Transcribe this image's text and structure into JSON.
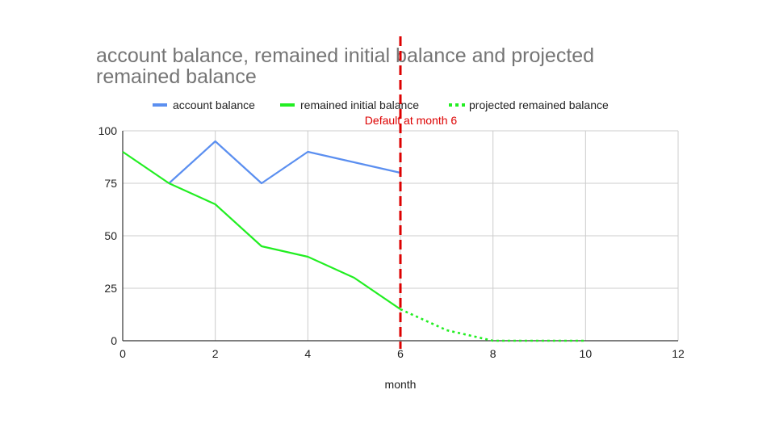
{
  "chart_data": {
    "type": "line",
    "title_lines": [
      "account balance, remained initial balance and projected",
      "remained balance"
    ],
    "xlabel": "month",
    "ylabel": "",
    "xlim": [
      0,
      12
    ],
    "ylim": [
      0,
      100
    ],
    "x_ticks": [
      0,
      2,
      4,
      6,
      8,
      10,
      12
    ],
    "y_ticks": [
      0,
      25,
      50,
      75,
      100
    ],
    "grid": true,
    "legend_position": "top",
    "series": [
      {
        "name": "account balance",
        "color": "#5b8ff0",
        "style": "solid",
        "points": [
          [
            1,
            75
          ],
          [
            2,
            95
          ],
          [
            3,
            75
          ],
          [
            4,
            90
          ],
          [
            6,
            80
          ]
        ]
      },
      {
        "name": "remained initial balance",
        "color": "#22ee22",
        "style": "solid",
        "points": [
          [
            0,
            90
          ],
          [
            1,
            75
          ],
          [
            2,
            65
          ],
          [
            3,
            45
          ],
          [
            4,
            40
          ],
          [
            5,
            30
          ],
          [
            6,
            15
          ]
        ]
      },
      {
        "name": "projected remained balance",
        "color": "#22ee22",
        "style": "dotted",
        "points": [
          [
            6,
            15
          ],
          [
            7,
            5
          ],
          [
            8,
            0
          ],
          [
            9,
            0
          ],
          [
            10,
            0
          ]
        ]
      }
    ],
    "annotation": {
      "text": "Default at month 6",
      "x": 6,
      "color": "#dd0000",
      "line_style": "dashed"
    }
  }
}
